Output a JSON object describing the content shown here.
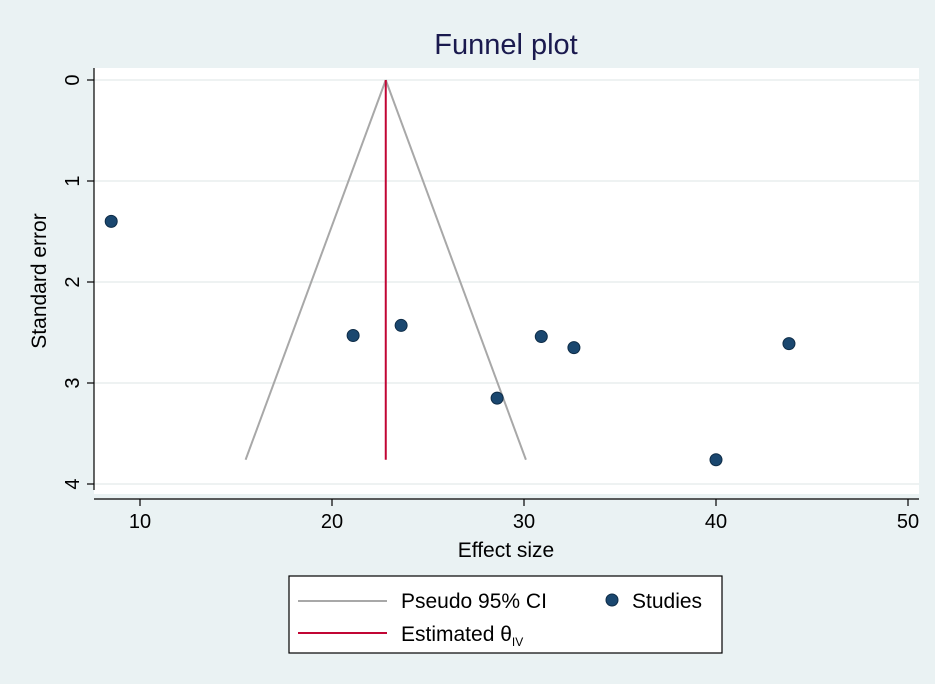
{
  "chart_data": {
    "type": "scatter",
    "title": "Funnel plot",
    "xlabel": "Effect size",
    "ylabel": "Standard error",
    "xlim": [
      8,
      51
    ],
    "ylim": [
      0,
      4
    ],
    "y_reversed": true,
    "xticks": [
      "10",
      "20",
      "30",
      "40",
      "50"
    ],
    "yticks": [
      "0",
      "1",
      "2",
      "3",
      "4"
    ],
    "grid": "horizontal",
    "points": [
      {
        "x": 8.5,
        "y": 1.4
      },
      {
        "x": 21.1,
        "y": 2.53
      },
      {
        "x": 23.6,
        "y": 2.43
      },
      {
        "x": 28.6,
        "y": 3.15
      },
      {
        "x": 30.9,
        "y": 2.54
      },
      {
        "x": 32.6,
        "y": 2.65
      },
      {
        "x": 40.0,
        "y": 3.76
      },
      {
        "x": 43.8,
        "y": 2.61
      }
    ],
    "estimate": 22.8,
    "funnel": {
      "apex": [
        22.8,
        0
      ],
      "base_y": 3.76,
      "base_left": 15.5,
      "base_right": 30.1
    },
    "legend": {
      "position": "bottom",
      "entries": [
        {
          "label": "Pseudo 95% CI",
          "kind": "line",
          "color": "#a8a8a8"
        },
        {
          "label": "Studies",
          "kind": "marker",
          "color": "#1a476f"
        },
        {
          "label": "Estimated θ",
          "subscript": "IV",
          "kind": "line",
          "color": "#c10534"
        }
      ]
    },
    "colors": {
      "background": "#eaf2f3",
      "plot": "#ffffff",
      "grid": "#e8eeee",
      "points": "#1a476f",
      "ci": "#a8a8a8",
      "estimate": "#c10534"
    }
  }
}
